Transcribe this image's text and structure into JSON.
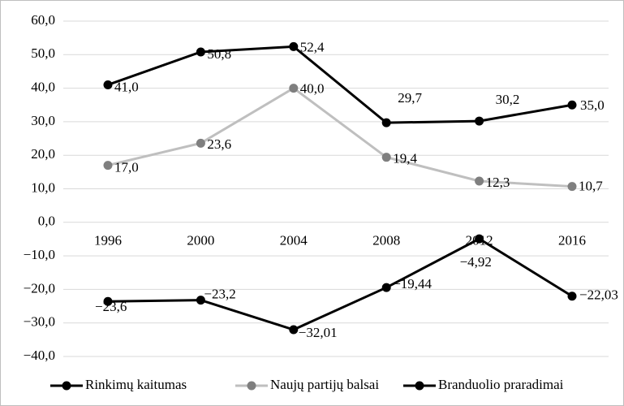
{
  "chart_data": {
    "type": "line",
    "categories": [
      "1996",
      "2000",
      "2004",
      "2008",
      "2012",
      "2016"
    ],
    "series": [
      {
        "name": "Rinkimų kaitumas",
        "color": "#000000",
        "marker_color": "#000000",
        "values": [
          41.0,
          50.8,
          52.4,
          29.7,
          30.2,
          35.0
        ],
        "value_labels": [
          "41,0",
          "50,8",
          "52,4",
          "29,7",
          "30,2",
          "35,0"
        ]
      },
      {
        "name": "Naujų partijų balsai",
        "color": "#bfbfbf",
        "marker_color": "#7f7f7f",
        "values": [
          17.0,
          23.6,
          40.0,
          19.4,
          12.3,
          10.7
        ],
        "value_labels": [
          "17,0",
          "23,6",
          "40,0",
          "19,4",
          "12,3",
          "10,7"
        ]
      },
      {
        "name": "Branduolio praradimai",
        "color": "#000000",
        "marker_color": "#000000",
        "values": [
          -23.6,
          -23.2,
          -32.01,
          -19.44,
          -4.92,
          -22.03
        ],
        "value_labels": [
          "−23,6",
          "−23,2",
          "−32,01",
          "−19,44",
          "−4,92",
          "−22,03"
        ]
      }
    ],
    "ylim": [
      -40,
      60
    ],
    "yticks": [
      {
        "value": -40,
        "label": "−40,0"
      },
      {
        "value": -30,
        "label": "−30,0"
      },
      {
        "value": -20,
        "label": "−20,0"
      },
      {
        "value": -10,
        "label": "−10,0"
      },
      {
        "value": 0,
        "label": "0,0"
      },
      {
        "value": 10,
        "label": "10,0"
      },
      {
        "value": 20,
        "label": "20,0"
      },
      {
        "value": 30,
        "label": "30,0"
      },
      {
        "value": 40,
        "label": "40,0"
      },
      {
        "value": 50,
        "label": "50,0"
      },
      {
        "value": 60,
        "label": "60,0"
      }
    ],
    "grid": true,
    "legend": "bottom"
  }
}
